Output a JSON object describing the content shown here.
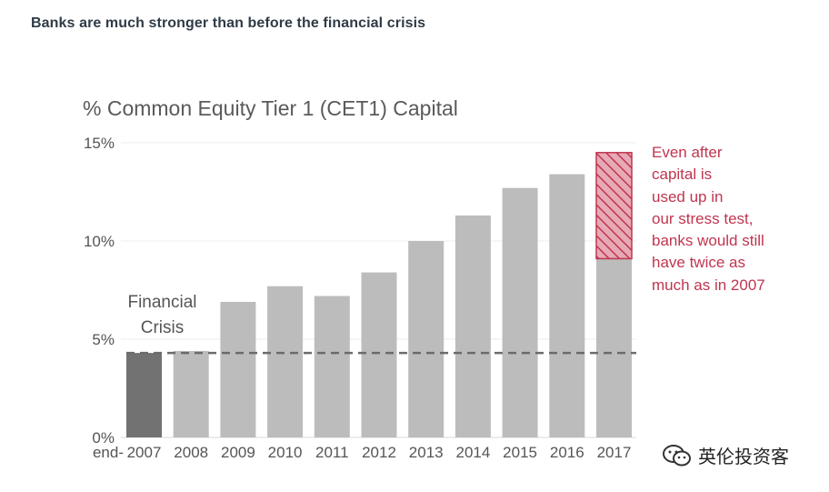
{
  "page": {
    "heading": "Banks are much stronger than before the financial crisis"
  },
  "chart_data": {
    "type": "bar",
    "title": "% Common Equity Tier 1 (CET1) Capital",
    "x_prefix": "end-",
    "categories": [
      "2007",
      "2008",
      "2009",
      "2010",
      "2011",
      "2012",
      "2013",
      "2014",
      "2015",
      "2016",
      "2017"
    ],
    "values": [
      4.3,
      4.4,
      6.9,
      7.7,
      7.2,
      8.4,
      10.0,
      11.3,
      12.7,
      13.4,
      14.5
    ],
    "stress_test_remaining_2017": 9.1,
    "reference_line": 4.3,
    "highlight_category": "2007",
    "ylim": [
      0,
      15
    ],
    "yticks": [
      0,
      5,
      10,
      15
    ],
    "ytick_labels": [
      "0%",
      "5%",
      "10%",
      "15%"
    ],
    "annotations": {
      "crisis": [
        "Financial",
        "Crisis"
      ],
      "stress_test": [
        "Even after",
        "capital is",
        "used up in",
        "our stress test,",
        "banks would still",
        "have twice as",
        "much as in 2007"
      ]
    },
    "colors": {
      "bar": "#bdbcbd",
      "highlight_bar": "#737273",
      "hatch_fill": "#e7a9b6",
      "accent": "#c0354f",
      "reference_line": "#6b6b6b",
      "grid": "#ececec"
    }
  },
  "watermark": {
    "icon": "wechat-icon",
    "text": "英伦投资客"
  }
}
